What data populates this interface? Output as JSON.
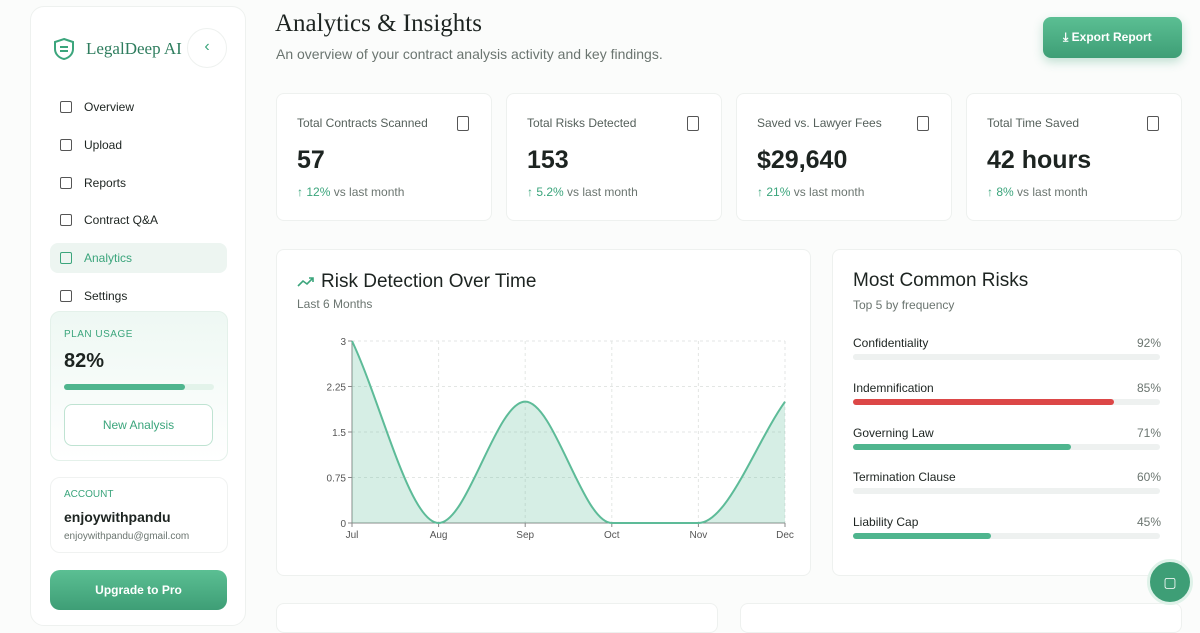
{
  "sidebar": {
    "brand": "LegalDeep AI",
    "nav": [
      "Overview",
      "Upload",
      "Reports",
      "Contract Q&A",
      "Analytics",
      "Settings"
    ],
    "active_index": 4,
    "plan": {
      "label": "PLAN USAGE",
      "value": 82,
      "value_label": "82%",
      "button": "New Analysis"
    },
    "account": {
      "label": "ACCOUNT",
      "name": "enjoywithpandu",
      "email": "enjoywithpandu@gmail.com"
    },
    "upgrade": "Upgrade to Pro"
  },
  "header": {
    "title": "Analytics & Insights",
    "subtitle": "An overview of your contract analysis activity and key findings.",
    "export": "Export Report"
  },
  "stats": [
    {
      "title": "Total Contracts Scanned",
      "value": "57",
      "change": "12%",
      "suffix": "vs last month"
    },
    {
      "title": "Total Risks Detected",
      "value": "153",
      "change": "5.2%",
      "suffix": "vs last month"
    },
    {
      "title": "Saved vs. Lawyer Fees",
      "value": "$29,640",
      "change": "21%",
      "suffix": "vs last month"
    },
    {
      "title": "Total Time Saved",
      "value": "42 hours",
      "change": "8%",
      "suffix": "vs last month"
    }
  ],
  "chart_data": {
    "type": "area",
    "title": "Risk Detection Over Time",
    "subtitle": "Last 6 Months",
    "categories": [
      "Jul",
      "Aug",
      "Sep",
      "Oct",
      "Nov",
      "Dec"
    ],
    "values": [
      3,
      0,
      2,
      0,
      0,
      2
    ],
    "color": "#5dbb98",
    "ylim": [
      0,
      3
    ],
    "yticks": [
      0,
      0.75,
      1.5,
      2.25,
      3
    ],
    "grid": true
  },
  "risks": {
    "title": "Most Common Risks",
    "subtitle": "Top 5 by frequency",
    "categories": [
      "Confidentiality",
      "Indemnification",
      "Governing Law",
      "Termination Clause",
      "Liability Cap"
    ],
    "values": [
      92,
      85,
      71,
      60,
      45
    ],
    "value_labels": [
      "92%",
      "85%",
      "71%",
      "60%",
      "45%"
    ],
    "colors": [
      "#eef1f0",
      "#dc4747",
      "#4fb58e",
      "#eef1f0",
      "#4fb58e"
    ]
  }
}
